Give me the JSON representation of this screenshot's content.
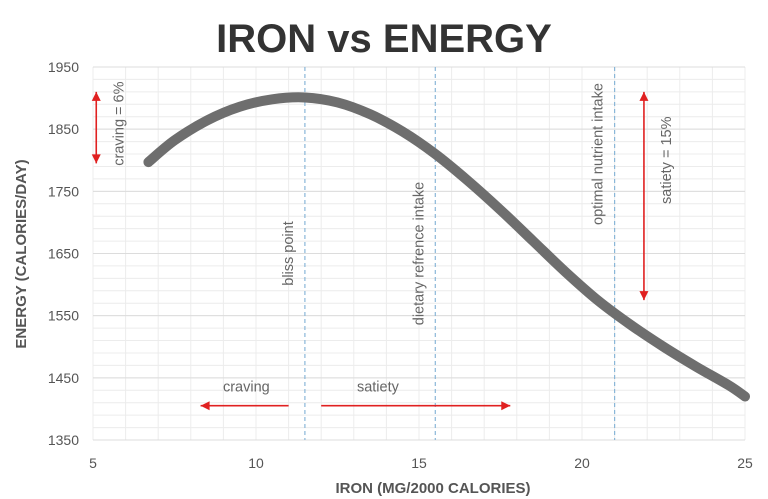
{
  "chart_data": {
    "type": "line",
    "title": "IRON vs ENERGY",
    "xlabel": "IRON (MG/2000 CALORIES)",
    "ylabel": "ENERGY (CALORIES/DAY)",
    "xlim": [
      5,
      25
    ],
    "ylim": [
      1350,
      1950
    ],
    "xticks": [
      5,
      10,
      15,
      20,
      25
    ],
    "yticks": [
      1350,
      1450,
      1550,
      1650,
      1750,
      1850,
      1950
    ],
    "grid": true,
    "series": [
      {
        "color": "#6e6e6e",
        "x": [
          6.7,
          7.5,
          8.5,
          9.5,
          10.5,
          11.5,
          12.5,
          13.5,
          14.5,
          15.5,
          16.5,
          17.5,
          18.5,
          19.5,
          20.5,
          21.5,
          22.5,
          23.5,
          24.5,
          25
        ],
        "y": [
          1797,
          1832,
          1864,
          1886,
          1898,
          1901,
          1893,
          1874,
          1846,
          1810,
          1767,
          1720,
          1670,
          1620,
          1574,
          1535,
          1500,
          1468,
          1438,
          1420
        ]
      }
    ],
    "reference_lines": [
      {
        "x": 11.5,
        "label": "bliss point"
      },
      {
        "x": 15.5,
        "label": "dietary refrence intake"
      },
      {
        "x": 21,
        "label": "optimal nutrient intake"
      }
    ],
    "annotations": [
      {
        "text": "craving",
        "x_from": 11,
        "x_to": 8.3,
        "y": 1410
      },
      {
        "text": "satiety",
        "x_from": 12,
        "x_to": 17.8,
        "y": 1410
      },
      {
        "text": "craving = 6%",
        "x": 5.1,
        "y_from": 1910,
        "y_to": 1795
      },
      {
        "text": "satiety = 15%",
        "x": 21.9,
        "y_from": 1910,
        "y_to": 1575
      }
    ],
    "colors": {
      "curve": "#6e6e6e",
      "arrow": "#e02020",
      "reference_line": "#8ab7d8",
      "grid": "#ececec"
    }
  }
}
